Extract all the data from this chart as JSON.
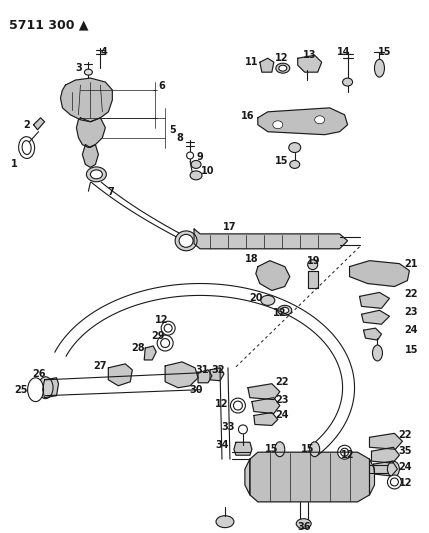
{
  "title": "5711 300 ▲",
  "bg_color": "#ffffff",
  "line_color": "#1a1a1a",
  "title_fontsize": 9,
  "label_fontsize": 7,
  "fig_width": 4.29,
  "fig_height": 5.33,
  "dpi": 100
}
